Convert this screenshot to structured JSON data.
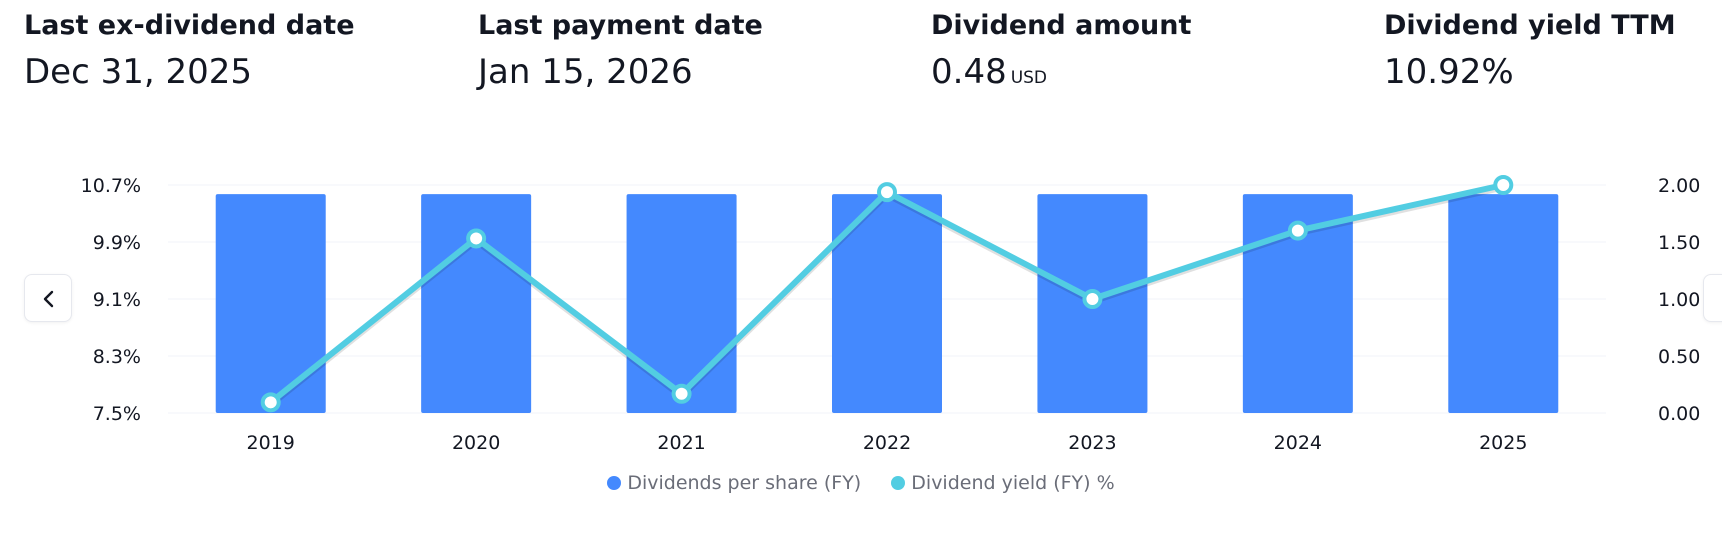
{
  "stats": [
    {
      "label": "Last ex-dividend date",
      "value": "Dec 31, 2025",
      "unit": ""
    },
    {
      "label": "Last payment date",
      "value": "Jan 15, 2026",
      "unit": ""
    },
    {
      "label": "Dividend amount",
      "value": "0.48",
      "unit": "USD"
    },
    {
      "label": "Dividend yield TTM",
      "value": "10.92%",
      "unit": ""
    }
  ],
  "nav": {
    "prev_icon": "chevron-left-icon",
    "next_icon": "chevron-right-icon"
  },
  "chart_data": {
    "type": "bar",
    "title": "",
    "categories": [
      "2019",
      "2020",
      "2021",
      "2022",
      "2023",
      "2024",
      "2025"
    ],
    "series": [
      {
        "name": "Dividends per share (FY)",
        "type": "bar",
        "axis": "right",
        "color": "#4489fe",
        "values": [
          1.92,
          1.92,
          1.92,
          1.92,
          1.92,
          1.92,
          1.92
        ]
      },
      {
        "name": "Dividend yield (FY) %",
        "type": "line",
        "axis": "left",
        "color": "#52cde2",
        "values": [
          7.65,
          9.95,
          7.77,
          10.6,
          9.1,
          10.06,
          10.7
        ]
      }
    ],
    "left_axis": {
      "ticks": [
        "10.7%",
        "9.9%",
        "9.1%",
        "8.3%",
        "7.5%"
      ],
      "range": [
        7.5,
        10.7
      ]
    },
    "right_axis": {
      "ticks": [
        "2.00",
        "1.50",
        "1.00",
        "0.50",
        "0.00"
      ],
      "range": [
        0,
        2
      ]
    },
    "grid": true,
    "legend": "bottom-center"
  }
}
